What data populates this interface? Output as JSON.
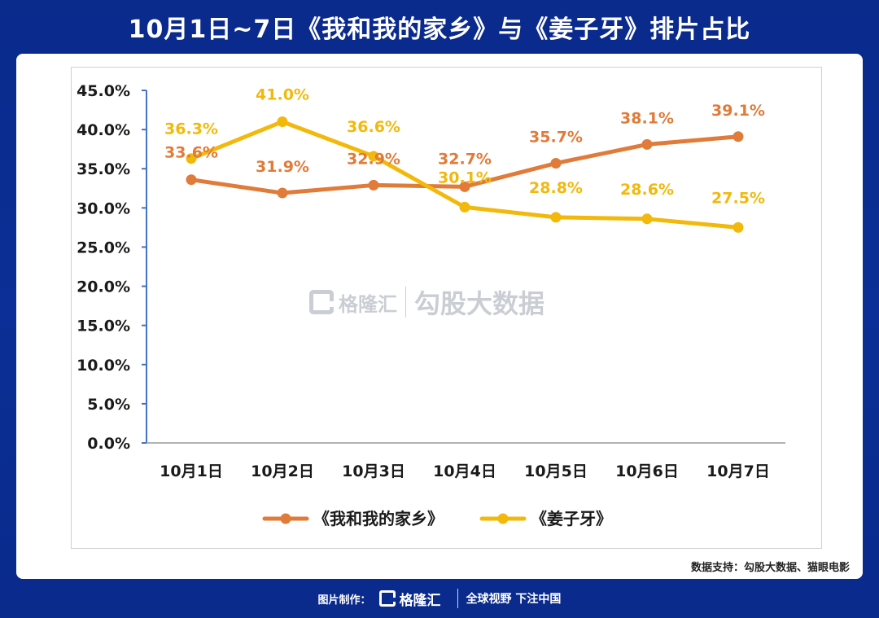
{
  "header": {
    "title": "10月1日~7日《我和我的家乡》与《姜子牙》排片占比"
  },
  "watermark": {
    "brand": "格隆汇",
    "name": "勾股大数据"
  },
  "source": {
    "text": "数据支持：勾股大数据、猫眼电影"
  },
  "footer": {
    "label": "图片制作：",
    "brand": "格隆汇",
    "slogan": "全球视野 下注中国"
  },
  "colors": {
    "series1": "#e07b39",
    "series2": "#f2b90c",
    "axis": "#4472c4"
  },
  "chart_data": {
    "type": "line",
    "title": "10月1日~7日《我和我的家乡》与《姜子牙》排片占比",
    "categories": [
      "10月1日",
      "10月2日",
      "10月3日",
      "10月4日",
      "10月5日",
      "10月6日",
      "10月7日"
    ],
    "yticks": [
      "0.0%",
      "5.0%",
      "10.0%",
      "15.0%",
      "20.0%",
      "25.0%",
      "30.0%",
      "35.0%",
      "40.0%",
      "45.0%"
    ],
    "ylim": [
      0,
      45
    ],
    "grid": false,
    "legend": "bottom-center",
    "series": [
      {
        "name": "《我和我的家乡》",
        "color": "#e07b39",
        "values": [
          33.6,
          31.9,
          32.9,
          32.7,
          35.7,
          38.1,
          39.1
        ],
        "labels": [
          "33.6%",
          "31.9%",
          "32.9%",
          "32.7%",
          "35.7%",
          "38.1%",
          "39.1%"
        ]
      },
      {
        "name": "《姜子牙》",
        "color": "#f2b90c",
        "values": [
          36.3,
          41.0,
          36.6,
          30.1,
          28.8,
          28.6,
          27.5
        ],
        "labels": [
          "36.3%",
          "41.0%",
          "36.6%",
          "30.1%",
          "28.8%",
          "28.6%",
          "27.5%"
        ]
      }
    ]
  }
}
